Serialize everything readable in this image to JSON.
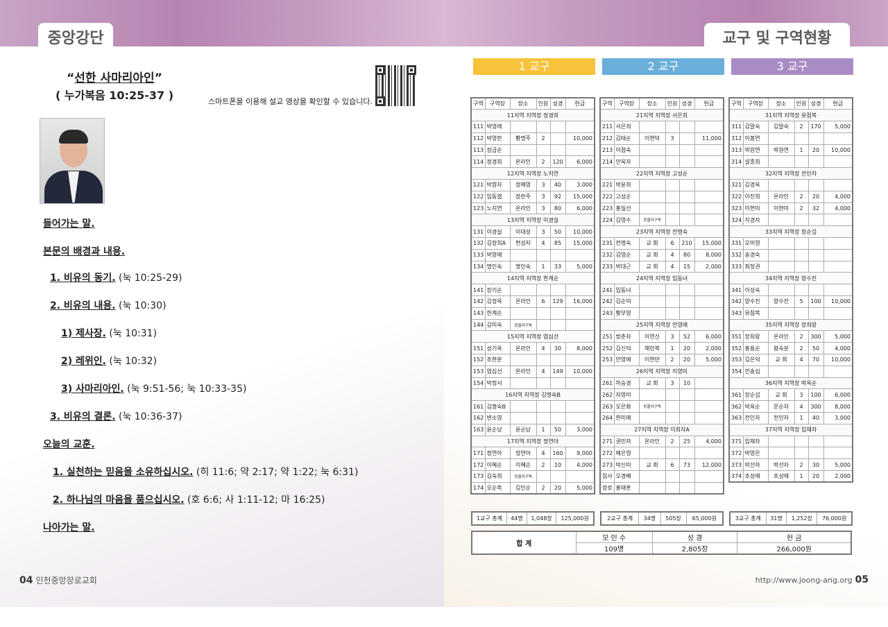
{
  "left": {
    "tab": "중앙강단",
    "title": "선한 사마리아인",
    "scripture": "( 누가복음 10:25-37 )",
    "qr_caption": "스마트폰을 이용해 설교 영상을 확인할 수 있습니다.",
    "outline": [
      {
        "b": "들어가는 말.",
        "r": ""
      },
      {
        "b": "본문의 배경과 내용.",
        "r": ""
      },
      {
        "b": "1. 비유의 동기.",
        "r": " (눅 10:25-29)"
      },
      {
        "b": "2. 비유의 내용.",
        "r": " (눅 10:30)"
      },
      {
        "b": "1) 제사장.",
        "r": " (눅 10:31)"
      },
      {
        "b": "2) 레위인.",
        "r": " (눅 10:32)"
      },
      {
        "b": "3) 사마리아인.",
        "r": " (눅 9:51-56; 눅 10:33-35)"
      },
      {
        "b": "3. 비유의 결론.",
        "r": " (눅 10:36-37)"
      },
      {
        "b": "오늘의 교훈.",
        "r": ""
      },
      {
        "b": "1. 실천하는 믿음을 소유하십시오.",
        "r": " (히 11:6; 약 2:17; 약 1:22; 눅 6:31)"
      },
      {
        "b": "2. 하나님의 마음을 품으십시오.",
        "r": " (호 6:6; 사 1:11-12; 마 16:25)"
      },
      {
        "b": "나아가는 말.",
        "r": ""
      }
    ],
    "page_no": "04",
    "church": "인천중앙장로교회"
  },
  "right": {
    "tab": "교구 및 구역현황",
    "page_no": "05",
    "url": "http://www.joong-ang.org",
    "headers": [
      "구역",
      "구역장",
      "장소",
      "인원",
      "성경",
      "헌금"
    ],
    "groups": [
      {
        "label": "1 교구",
        "color": "#f8c23a",
        "sections": [
          {
            "title": "11지역 지역장 정경희",
            "rows": [
              [
                "111",
                "박영례",
                "",
                "",
                "",
                ""
              ],
              [
                "112",
                "박영란",
                "황명주",
                "2",
                "",
                "10,000"
              ],
              [
                "113",
                "장금순",
                "",
                "",
                "",
                ""
              ],
              [
                "114",
                "정경희",
                "온라인",
                "2",
                "120",
                "6,000"
              ]
            ]
          },
          {
            "title": "12지역 지역장 노지연",
            "rows": [
              [
                "121",
                "박향자",
                "정해영",
                "3",
                "40",
                "3,000"
              ],
              [
                "122",
                "임동열",
                "장란주",
                "3",
                "92",
                "15,000"
              ],
              [
                "123",
                "노지연",
                "온라인",
                "3",
                "80",
                "6,000"
              ]
            ]
          },
          {
            "title": "13지역 지역장 이경실",
            "rows": [
              [
                "131",
                "이경실",
                "이대성",
                "3",
                "50",
                "10,000"
              ],
              [
                "132",
                "김정희A",
                "현성자",
                "4",
                "85",
                "15,000"
              ],
              [
                "133",
                "박영애",
                "",
                "",
                "",
                ""
              ],
              [
                "134",
                "명인숙",
                "명인숙",
                "1",
                "33",
                "5,000"
              ]
            ]
          },
          {
            "title": "14지역 지역장 한계순",
            "rows": [
              [
                "141",
                "장기순",
                "",
                "",
                "",
                ""
              ],
              [
                "142",
                "김정옥",
                "온라인",
                "6",
                "129",
                "16,000"
              ],
              [
                "143",
                "한계순",
                "",
                "",
                "",
                ""
              ],
              [
                "144",
                "김미숙",
                "장결자구역",
                "",
                "",
                ""
              ]
            ]
          },
          {
            "title": "15지역 지역장 염심선",
            "rows": [
              [
                "151",
                "성기옥",
                "온라인",
                "4",
                "30",
                "8,000"
              ],
              [
                "152",
                "조한분",
                "",
                "",
                "",
                ""
              ],
              [
                "153",
                "염심선",
                "온라인",
                "4",
                "149",
                "10,000"
              ],
              [
                "154",
                "박정서",
                "",
                "",
                "",
                ""
              ]
            ]
          },
          {
            "title": "16지역 지역장 김명숙B",
            "rows": [
              [
                "161",
                "김명숙B",
                "",
                "",
                "",
                ""
              ],
              [
                "162",
                "변소영",
                "",
                "",
                "",
                ""
              ],
              [
                "163",
                "윤순남",
                "윤순남",
                "1",
                "50",
                "3,000"
              ]
            ]
          },
          {
            "title": "17지역 지역장 정연아",
            "rows": [
              [
                "171",
                "정연아",
                "정연아",
                "4",
                "160",
                "9,000"
              ],
              [
                "172",
                "이혜순",
                "이혜순",
                "2",
                "10",
                "4,000"
              ],
              [
                "173",
                "김숙희",
                "장결자구역",
                "",
                "",
                ""
              ],
              [
                "174",
                "오순복",
                "김인순",
                "2",
                "20",
                "5,000"
              ]
            ]
          }
        ],
        "extra": [],
        "total": [
          "1교구 총계",
          "44명",
          "1,048장",
          "125,000원"
        ]
      },
      {
        "label": "2 교구",
        "color": "#6aaedb",
        "sections": [
          {
            "title": "21지역 지역장 서은희",
            "rows": [
              [
                "211",
                "서은희",
                "",
                "",
                "",
                ""
              ],
              [
                "212",
                "김태순",
                "이현덕",
                "3",
                "",
                "11,000"
              ],
              [
                "213",
                "이점숙",
                "",
                "",
                "",
                ""
              ],
              [
                "214",
                "안옥자",
                "",
                "",
                "",
                ""
              ]
            ]
          },
          {
            "title": "22지역 지역장 고성순",
            "rows": [
              [
                "221",
                "박윤희",
                "",
                "",
                "",
                ""
              ],
              [
                "222",
                "고성순",
                "",
                "",
                "",
                ""
              ],
              [
                "223",
                "홍일선",
                "",
                "",
                "",
                ""
              ],
              [
                "224",
                "김영수",
                "장결자구역",
                "",
                "",
                ""
              ]
            ]
          },
          {
            "title": "23지역 지역장 전명숙",
            "rows": [
              [
                "231",
                "전명숙",
                "교 회",
                "6",
                "210",
                "15,000"
              ],
              [
                "232",
                "김영순",
                "교 회",
                "4",
                "80",
                "8,000"
              ],
              [
                "233",
                "박대근",
                "교 회",
                "4",
                "15",
                "2,000"
              ]
            ]
          },
          {
            "title": "24지역 지역장 임동녀",
            "rows": [
              [
                "241",
                "임동녀",
                "",
                "",
                "",
                ""
              ],
              [
                "242",
                "김순덕",
                "",
                "",
                "",
                ""
              ],
              [
                "243",
                "황부영",
                "",
                "",
                "",
                ""
              ]
            ]
          },
          {
            "title": "25지역 지역장 안영애",
            "rows": [
              [
                "251",
                "방춘자",
                "이연신",
                "3",
                "52",
                "6,000"
              ],
              [
                "252",
                "김신덕",
                "채민복",
                "1",
                "20",
                "2,000"
              ],
              [
                "253",
                "안영애",
                "이한만",
                "2",
                "20",
                "5,000"
              ]
            ]
          },
          {
            "title": "26지역 지역장 지영미",
            "rows": [
              [
                "261",
                "하승경",
                "교 회",
                "3",
                "10",
                ""
              ],
              [
                "262",
                "지영미",
                "",
                "",
                "",
                ""
              ],
              [
                "263",
                "오은화",
                "장결자구역",
                "",
                "",
                ""
              ],
              [
                "264",
                "한미애",
                "",
                "",
                "",
                ""
              ]
            ]
          },
          {
            "title": "27지역 지역장 이희자A",
            "rows": [
              [
                "271",
                "권민자",
                "온라인",
                "2",
                "25",
                "4,000"
              ],
              [
                "272",
                "예은영",
                "",
                "",
                "",
                ""
              ],
              [
                "273",
                "박신미",
                "교 회",
                "6",
                "73",
                "12,000"
              ]
            ]
          }
        ],
        "extra": [
          [
            "집사",
            "오경배",
            "",
            "",
            "",
            ""
          ],
          [
            "장로",
            "홍태훈",
            "",
            "",
            "",
            ""
          ]
        ],
        "total": [
          "2교구 총계",
          "34명",
          "505장",
          "65,000원"
        ]
      },
      {
        "label": "3 교구",
        "color": "#a98cc6",
        "sections": [
          {
            "title": "31지역 지역장 유점복",
            "rows": [
              [
                "311",
                "김말숙",
                "김말숙",
                "2",
                "170",
                "5,000"
              ],
              [
                "312",
                "이봉연",
                "",
                "",
                "",
                ""
              ],
              [
                "313",
                "박원연",
                "박원연",
                "1",
                "20",
                "10,000"
              ],
              [
                "314",
                "설종희",
                "",
                "",
                "",
                ""
              ]
            ]
          },
          {
            "title": "32지역 지역장 전인자",
            "rows": [
              [
                "321",
                "김경옥",
                "",
                "",
                "",
                ""
              ],
              [
                "322",
                "이진희",
                "온라인",
                "2",
                "20",
                "4,000"
              ],
              [
                "323",
                "이현미",
                "이현미",
                "2",
                "32",
                "4,000"
              ],
              [
                "324",
                "지경자",
                "",
                "",
                "",
                ""
              ]
            ]
          },
          {
            "title": "33지역 지역장 장순섭",
            "rows": [
              [
                "331",
                "오미영",
                "",
                "",
                "",
                ""
              ],
              [
                "332",
                "송경숙",
                "",
                "",
                "",
                ""
              ],
              [
                "333",
                "최정권",
                "",
                "",
                "",
                ""
              ]
            ]
          },
          {
            "title": "34지역 지역장 양수진",
            "rows": [
              [
                "341",
                "이성숙",
                "",
                "",
                "",
                ""
              ],
              [
                "342",
                "양수진",
                "양수진",
                "5",
                "100",
                "10,000"
              ],
              [
                "343",
                "유점복",
                "",
                "",
                "",
                ""
              ]
            ]
          },
          {
            "title": "35지역 지역장 장희랑",
            "rows": [
              [
                "351",
                "장희랑",
                "온라인",
                "2",
                "300",
                "5,000"
              ],
              [
                "352",
                "홍용순",
                "왕숙분",
                "2",
                "50",
                "4,000"
              ],
              [
                "353",
                "김은덕",
                "교 회",
                "4",
                "70",
                "10,000"
              ],
              [
                "354",
                "안송심",
                "",
                "",
                "",
                ""
              ]
            ]
          },
          {
            "title": "36지역 지역장 박옥순",
            "rows": [
              [
                "361",
                "장순섭",
                "교 회",
                "3",
                "100",
                "6,000"
              ],
              [
                "362",
                "박옥순",
                "문순자",
                "4",
                "300",
                "8,000"
              ],
              [
                "363",
                "전인자",
                "전인자",
                "1",
                "40",
                "3,000"
              ]
            ]
          },
          {
            "title": "37지역 지역장 임채자",
            "rows": [
              [
                "371",
                "임채자",
                "",
                "",
                "",
                ""
              ],
              [
                "372",
                "박영은",
                "",
                "",
                "",
                ""
              ],
              [
                "373",
                "박선자",
                "박선자",
                "2",
                "30",
                "5,000"
              ],
              [
                "374",
                "조성애",
                "조성애",
                "1",
                "20",
                "2,000"
              ]
            ]
          }
        ],
        "extra": [],
        "total": [
          "3교구 총계",
          "31명",
          "1,252장",
          "76,000원"
        ]
      }
    ],
    "grand": {
      "label": "합 계",
      "headers": [
        "모 인 수",
        "성 경",
        "헌 금"
      ],
      "values": [
        "109명",
        "2,805장",
        "266,000원"
      ]
    }
  }
}
